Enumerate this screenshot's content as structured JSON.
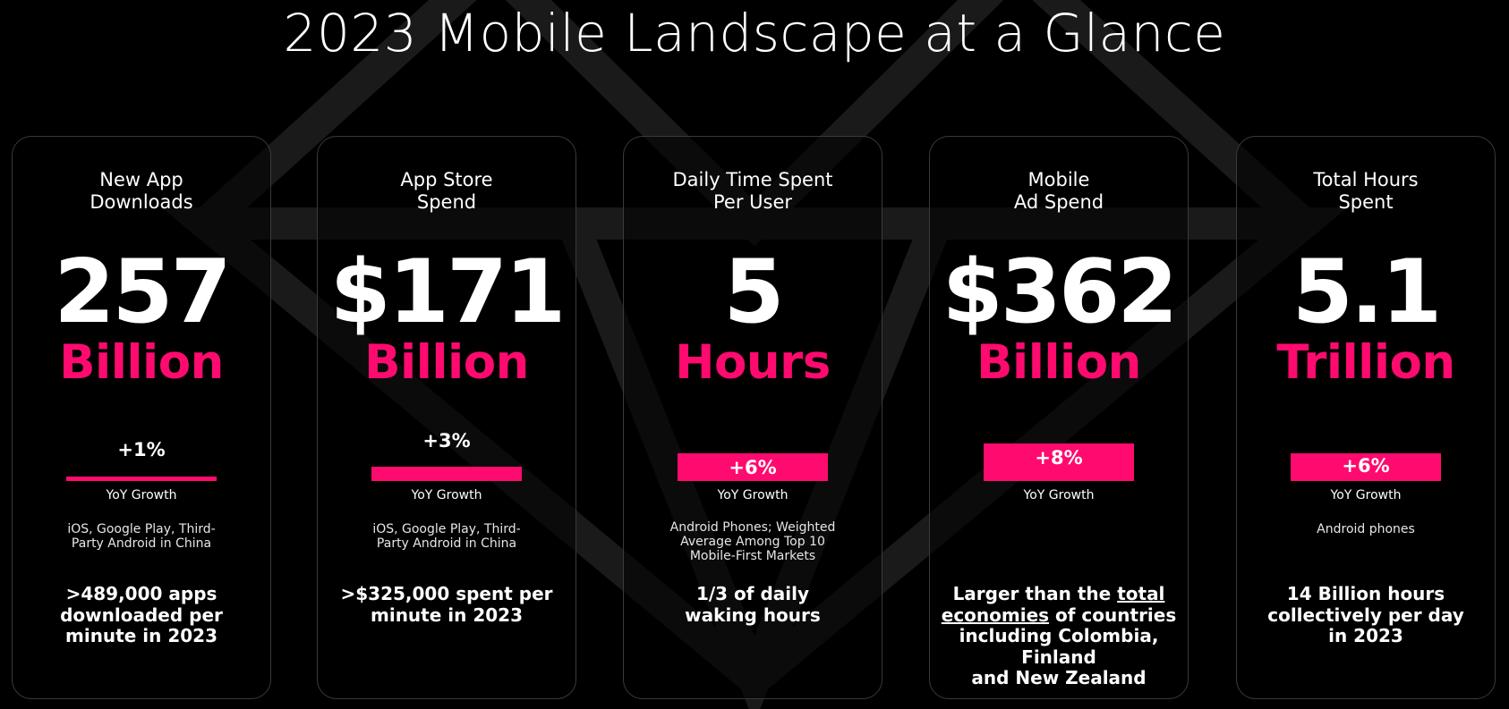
{
  "page": {
    "title": "2023 Mobile Landscape at a Glance",
    "accent_color": "#ff0a6e",
    "background_color": "#000000"
  },
  "cards": [
    {
      "title": "New App\nDownloads",
      "value": "257",
      "unit": "Billion",
      "growth": "+1%",
      "growth_label": "YoY Growth",
      "note": "iOS, Google Play, Third-\nParty Android in China",
      "highlight": ">489,000 apps\ndownloaded per\nminute in 2023"
    },
    {
      "title": "App Store\nSpend",
      "value": "$171",
      "unit": "Billion",
      "growth": "+3%",
      "growth_label": "YoY Growth",
      "note": "iOS, Google Play, Third-\nParty Android in China",
      "highlight": ">$325,000 spent per\nminute in 2023"
    },
    {
      "title": "Daily Time Spent\nPer User",
      "value": "5",
      "unit": "Hours",
      "growth": "+6%",
      "growth_label": "YoY Growth",
      "note": "Android Phones; Weighted\nAverage Among Top 10\nMobile-First  Markets",
      "highlight": "1/3 of daily\nwaking hours"
    },
    {
      "title": "Mobile\nAd Spend",
      "value": "$362",
      "unit": "Billion",
      "growth": "+8%",
      "growth_label": "YoY Growth",
      "note": "",
      "highlight_parts": {
        "a": "Larger than the ",
        "b": "total",
        "c": "economies",
        "d": " of countries",
        "e": "including Colombia, Finland",
        "f": "and New Zealand"
      }
    },
    {
      "title": "Total Hours\nSpent",
      "value": "5.1",
      "unit": "Trillion",
      "growth": "+6%",
      "growth_label": "YoY Growth",
      "note": "Android phones",
      "highlight": "14 Billion hours\ncollectively per day\nin 2023"
    }
  ]
}
